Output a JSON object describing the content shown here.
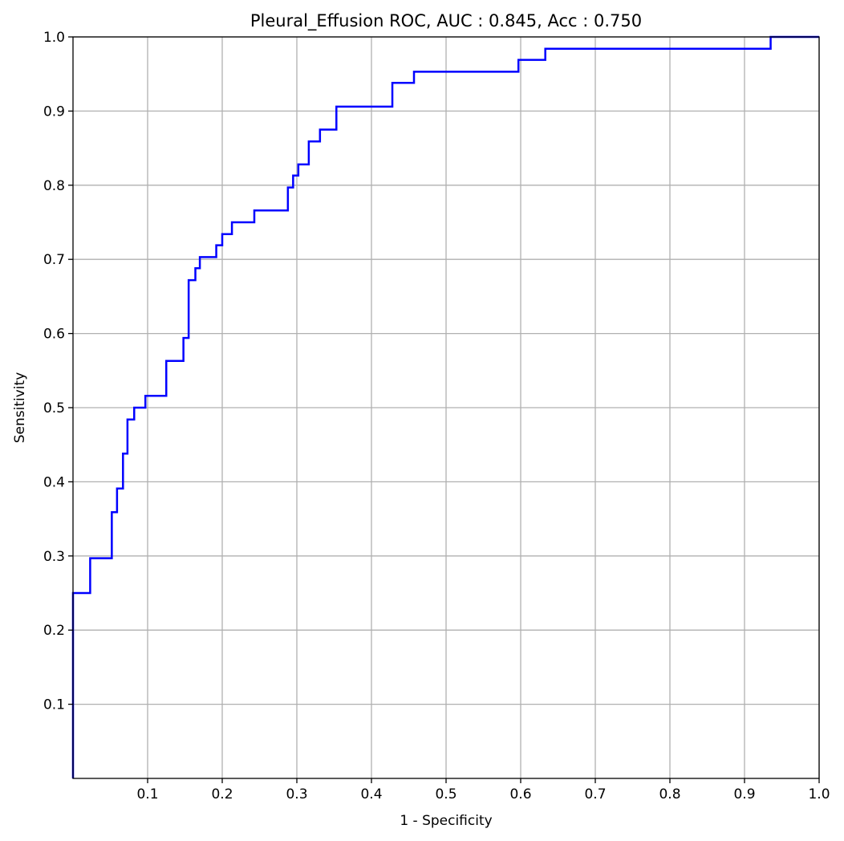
{
  "chart_data": {
    "type": "line",
    "title": "Pleural_Effusion ROC, AUC : 0.845, Acc : 0.750",
    "xlabel": "1 - Specificity",
    "ylabel": "Sensitivity",
    "xlim": [
      0,
      1
    ],
    "ylim": [
      0,
      1
    ],
    "grid": true,
    "step": true,
    "line_color": "#0000ff",
    "x_ticks": [
      0.1,
      0.2,
      0.3,
      0.4,
      0.5,
      0.6,
      0.7,
      0.8,
      0.9,
      1.0
    ],
    "x_tick_labels": [
      "0.1",
      "0.2",
      "0.3",
      "0.4",
      "0.5",
      "0.6",
      "0.7",
      "0.8",
      "0.9",
      "1.0"
    ],
    "y_ticks": [
      0.1,
      0.2,
      0.3,
      0.4,
      0.5,
      0.6,
      0.7,
      0.8,
      0.9,
      1.0
    ],
    "y_tick_labels": [
      "0.1",
      "0.2",
      "0.3",
      "0.4",
      "0.5",
      "0.6",
      "0.7",
      "0.8",
      "0.9",
      "1.0"
    ],
    "series": [
      {
        "x": [
          0.0,
          0.0,
          0.0,
          0.023,
          0.023,
          0.052,
          0.052,
          0.059,
          0.059,
          0.067,
          0.067,
          0.073,
          0.073,
          0.082,
          0.082,
          0.097,
          0.097,
          0.125,
          0.125,
          0.148,
          0.148,
          0.155,
          0.155,
          0.164,
          0.164,
          0.17,
          0.17,
          0.192,
          0.192,
          0.2,
          0.2,
          0.213,
          0.213,
          0.243,
          0.243,
          0.288,
          0.288,
          0.295,
          0.295,
          0.302,
          0.302,
          0.316,
          0.316,
          0.331,
          0.331,
          0.353,
          0.353,
          0.428,
          0.428,
          0.457,
          0.457,
          0.597,
          0.597,
          0.633,
          0.633,
          0.935,
          0.935,
          1.0
        ],
        "y": [
          0.0,
          0.0,
          0.25,
          0.25,
          0.297,
          0.297,
          0.359,
          0.359,
          0.391,
          0.391,
          0.438,
          0.438,
          0.484,
          0.484,
          0.5,
          0.5,
          0.516,
          0.516,
          0.563,
          0.563,
          0.594,
          0.594,
          0.672,
          0.672,
          0.688,
          0.688,
          0.703,
          0.703,
          0.719,
          0.719,
          0.734,
          0.734,
          0.75,
          0.75,
          0.766,
          0.766,
          0.797,
          0.797,
          0.813,
          0.813,
          0.828,
          0.828,
          0.859,
          0.859,
          0.875,
          0.875,
          0.906,
          0.906,
          0.938,
          0.938,
          0.953,
          0.953,
          0.969,
          0.969,
          0.984,
          0.984,
          1.0,
          1.0
        ]
      }
    ]
  }
}
